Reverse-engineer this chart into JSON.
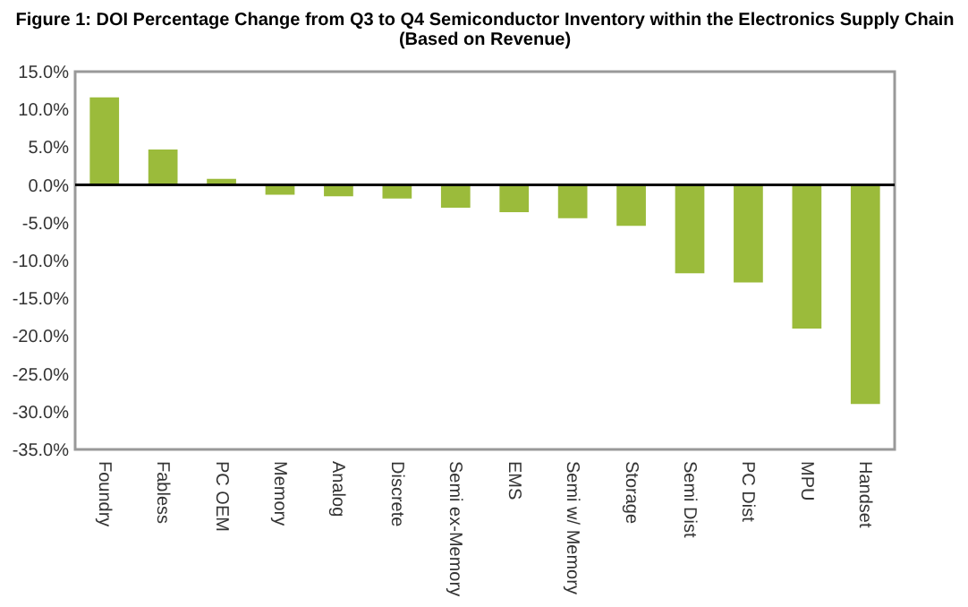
{
  "chart_data": {
    "type": "bar",
    "title": "Figure 1: DOI Percentage Change from Q3 to Q4 Semiconductor Inventory within the Electronics Supply Chain",
    "subtitle": "(Based on Revenue)",
    "categories": [
      "Foundry",
      "Fabless",
      "PC OEM",
      "Memory",
      "Analog",
      "Discrete",
      "Semi ex-Memory",
      "EMS",
      "Semi w/ Memory",
      "Storage",
      "Semi Dist",
      "PC Dist",
      "MPU",
      "Handset"
    ],
    "values": [
      11.6,
      4.7,
      0.8,
      -1.3,
      -1.5,
      -1.8,
      -3.0,
      -3.6,
      -4.4,
      -5.4,
      -11.7,
      -12.9,
      -19.0,
      -29.0
    ],
    "color": "#9bbb3b",
    "ylim": [
      -35,
      15
    ],
    "yticks": [
      {
        "value": -35,
        "label": "-35.0%"
      },
      {
        "value": -30,
        "label": "-30.0%"
      },
      {
        "value": -25,
        "label": "-25.0%"
      },
      {
        "value": -20,
        "label": "-20.0%"
      },
      {
        "value": -15,
        "label": "-15.0%"
      },
      {
        "value": -10,
        "label": "-10.0%"
      },
      {
        "value": -5,
        "label": "-5.0%"
      },
      {
        "value": 0,
        "label": "0.0%"
      },
      {
        "value": 5,
        "label": "5.0%"
      },
      {
        "value": 10,
        "label": "10.0%"
      },
      {
        "value": 15,
        "label": "15.0%"
      }
    ],
    "ref_lines": [
      {
        "axis": "y",
        "value": 0,
        "color": "#000000"
      }
    ],
    "grid": false
  }
}
